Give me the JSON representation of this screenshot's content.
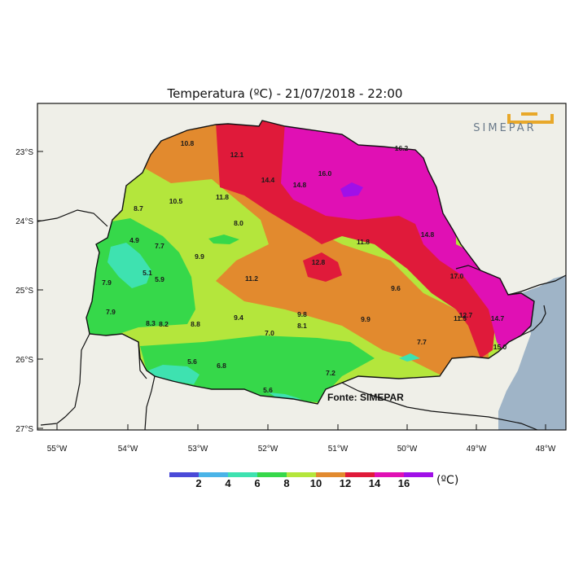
{
  "title": "Temperatura (ºC)  -  21/07/2018  -  22:00",
  "logo_text": "SIMEPAR",
  "source": "Fonte: SIMEPAR",
  "y_ticks": [
    "23°S",
    "24°S",
    "25°S",
    "26°S",
    "27°S"
  ],
  "x_ticks": [
    "55°W",
    "54°W",
    "53°W",
    "52°W",
    "51°W",
    "50°W",
    "49°W",
    "48°W"
  ],
  "legend": {
    "unit": "(ºC)",
    "labels": [
      "2",
      "4",
      "6",
      "8",
      "10",
      "12",
      "14",
      "16"
    ],
    "colors": [
      "#4a4ad8",
      "#4ab4e8",
      "#3ee2b0",
      "#36d84a",
      "#b4e63c",
      "#e28a2e",
      "#e01a3a",
      "#e010b4",
      "#a010e8"
    ]
  },
  "stations": [
    {
      "label": "10.8"
    },
    {
      "label": "12.1"
    },
    {
      "label": "16.2"
    },
    {
      "label": "14.4"
    },
    {
      "label": "14.8"
    },
    {
      "label": "16.0"
    },
    {
      "label": "10.5"
    },
    {
      "label": "11.8"
    },
    {
      "label": "8.7"
    },
    {
      "label": "8.0"
    },
    {
      "label": "14.8"
    },
    {
      "label": "4.9"
    },
    {
      "label": "7.7"
    },
    {
      "label": "11.8"
    },
    {
      "label": "9.9"
    },
    {
      "label": "5.1"
    },
    {
      "label": "12.8"
    },
    {
      "label": "5.9"
    },
    {
      "label": "11.2"
    },
    {
      "label": "17.0"
    },
    {
      "label": "7.9"
    },
    {
      "label": "9.6"
    },
    {
      "label": "7.9"
    },
    {
      "label": "9.8"
    },
    {
      "label": "12.7"
    },
    {
      "label": "11.5"
    },
    {
      "label": "14.7"
    },
    {
      "label": "9.4"
    },
    {
      "label": "8.3"
    },
    {
      "label": "8.2"
    },
    {
      "label": "8.8"
    },
    {
      "label": "9.9"
    },
    {
      "label": "8.1"
    },
    {
      "label": "7.0"
    },
    {
      "label": "7.7"
    },
    {
      "label": "15.0"
    },
    {
      "label": "5.6"
    },
    {
      "label": "6.8"
    },
    {
      "label": "7.2"
    },
    {
      "label": "5.6"
    }
  ]
}
